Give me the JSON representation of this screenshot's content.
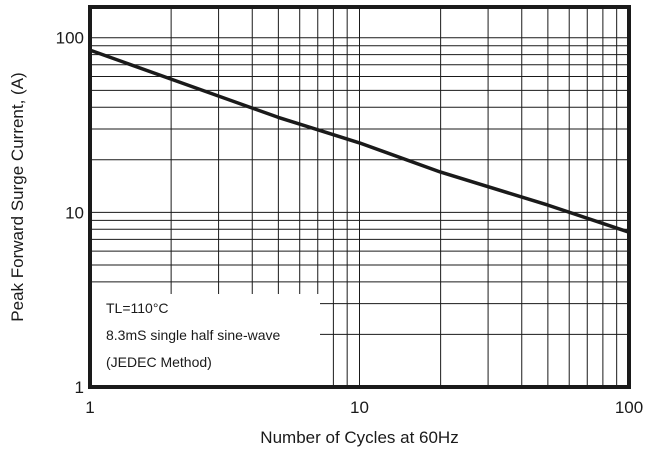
{
  "chart_data": {
    "type": "line",
    "xlabel": "Number of Cycles at 60Hz",
    "ylabel": "Peak Forward Surge Current, (A)",
    "x_scale": "log",
    "y_scale": "log",
    "xlim": [
      1,
      100
    ],
    "ylim": [
      1,
      150
    ],
    "x_ticks": [
      {
        "value": 1,
        "label": "1"
      },
      {
        "value": 10,
        "label": "10"
      },
      {
        "value": 100,
        "label": "100"
      }
    ],
    "y_ticks": [
      {
        "value": 1,
        "label": "1"
      },
      {
        "value": 10,
        "label": "10"
      },
      {
        "value": 100,
        "label": "100"
      }
    ],
    "grid": true,
    "series": [
      {
        "x": [
          1,
          2,
          5,
          10,
          20,
          50,
          100
        ],
        "y": [
          85,
          58,
          35,
          25,
          17,
          11,
          7.7
        ],
        "color": "#1a1a1a"
      }
    ],
    "annotations": [
      "TL=110°C",
      "8.3mS single half sine-wave",
      "(JEDEC Method)"
    ]
  }
}
